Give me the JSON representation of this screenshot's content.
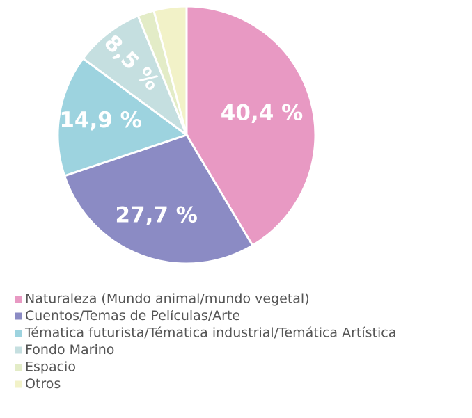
{
  "chart_data": {
    "type": "pie",
    "categories": [
      "Naturaleza (Mundo animal/mundo vegetal)",
      "Cuentos/Temas de Películas/Arte",
      "Tématica futurista/Tématica industrial/Temática Artística",
      "Fondo Marino",
      "Espacio",
      "Otros"
    ],
    "values": [
      40.4,
      27.7,
      14.9,
      8.5,
      2,
      4
    ],
    "value_labels": [
      "40,4 %",
      "27,7 %",
      "14,9 %",
      "8,5 %",
      null,
      null
    ],
    "colors": [
      "#e899c3",
      "#8b8bc4",
      "#9dd3df",
      "#c5dfe0",
      "#e3ecc7",
      "#f2f2c8"
    ],
    "legend": "bottom"
  }
}
